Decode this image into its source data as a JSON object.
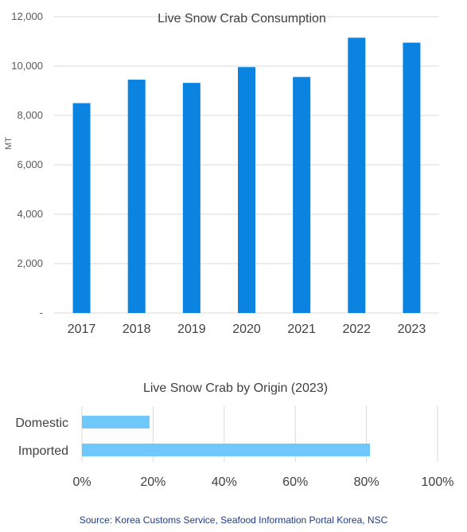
{
  "colors": {
    "bar_primary": "#0a84e0",
    "bar_secondary": "#6ec9fa",
    "grid": "#d9d9d9",
    "source_text": "#1f3c88"
  },
  "chart_data": [
    {
      "type": "bar",
      "title": "Live Snow Crab Consumption",
      "xlabel": "",
      "ylabel": "MT",
      "categories": [
        "2017",
        "2018",
        "2019",
        "2020",
        "2021",
        "2022",
        "2023"
      ],
      "values": [
        8500,
        9450,
        9320,
        9960,
        9560,
        11150,
        10950
      ],
      "ylim": [
        0,
        12000
      ],
      "yticks": [
        0,
        2000,
        4000,
        6000,
        8000,
        10000,
        12000
      ],
      "ytick_labels": [
        "-",
        "2,000",
        "4,000",
        "6,000",
        "8,000",
        "10,000",
        "12,000"
      ],
      "grid": true
    },
    {
      "type": "bar",
      "orientation": "horizontal",
      "title": "Live Snow Crab by Origin (2023)",
      "categories": [
        "Domestic",
        "Imported"
      ],
      "values": [
        19,
        81
      ],
      "unit": "%",
      "xlim": [
        0,
        100
      ],
      "xticks": [
        0,
        20,
        40,
        60,
        80,
        100
      ],
      "xtick_labels": [
        "0%",
        "20%",
        "40%",
        "60%",
        "80%",
        "100%"
      ],
      "grid": true
    }
  ],
  "source": "Source: Korea Customs Service, Seafood Information Portal Korea, NSC"
}
